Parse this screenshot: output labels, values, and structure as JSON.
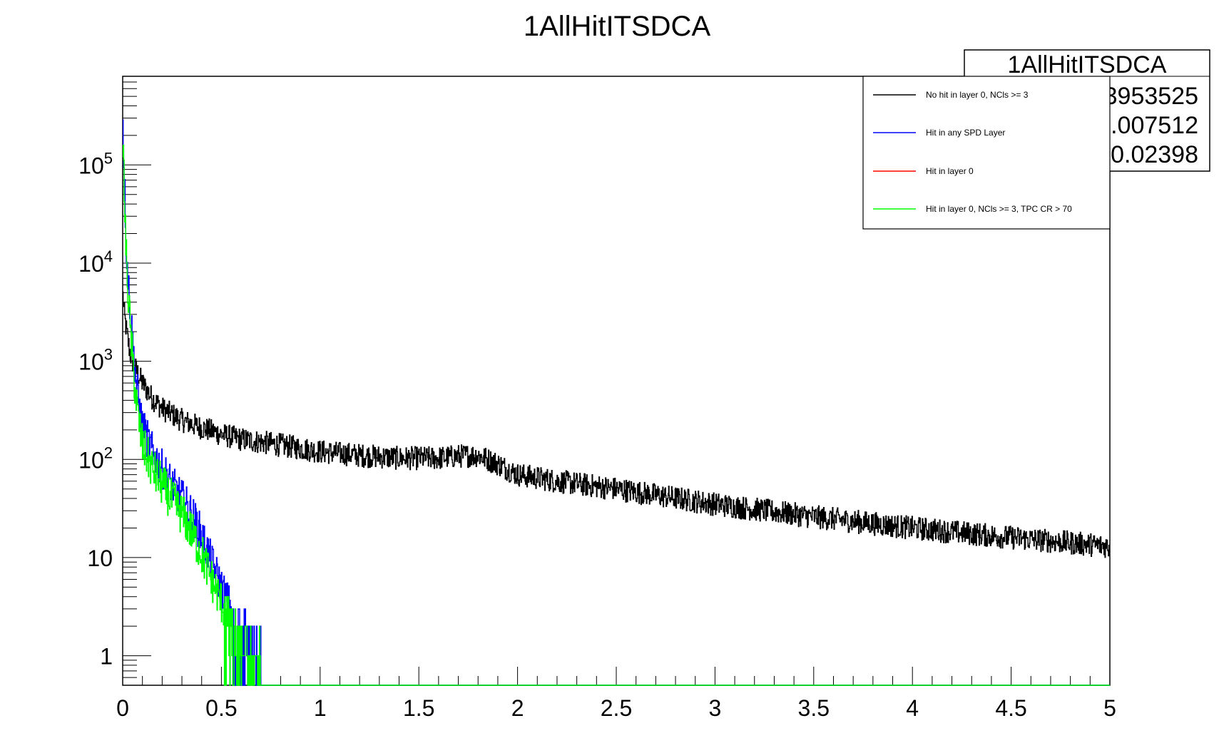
{
  "chart_data": {
    "type": "line",
    "title": "1AllHitITSDCA",
    "xlabel": "",
    "ylabel": "",
    "xlim": [
      0,
      5
    ],
    "ylim": [
      0.5,
      800000
    ],
    "y_scale": "log",
    "grid": false,
    "legend_placement": "top-right",
    "x_tick_labels": [
      "0",
      "0.5",
      "1",
      "1.5",
      "2",
      "2.5",
      "3",
      "3.5",
      "4",
      "4.5",
      "5"
    ],
    "y_tick_labels": [
      {
        "value": 1,
        "base": "1",
        "exp": ""
      },
      {
        "value": 10,
        "base": "10",
        "exp": ""
      },
      {
        "value": 100,
        "base": "10",
        "exp": "2"
      },
      {
        "value": 1000,
        "base": "10",
        "exp": "3"
      },
      {
        "value": 10000,
        "base": "10",
        "exp": "4"
      },
      {
        "value": 100000,
        "base": "10",
        "exp": "5"
      }
    ],
    "stats_box": {
      "title": "1AllHitITSDCA",
      "lines": [
        "3953525",
        ".007512",
        "0.02398"
      ]
    },
    "series": [
      {
        "name": "No hit in layer 0, NCls >= 3",
        "color": "#000000",
        "points": [
          [
            0.0,
            5000
          ],
          [
            0.01,
            2800
          ],
          [
            0.02,
            2000
          ],
          [
            0.03,
            1500
          ],
          [
            0.04,
            1150
          ],
          [
            0.05,
            1000
          ],
          [
            0.07,
            800
          ],
          [
            0.1,
            600
          ],
          [
            0.15,
            420
          ],
          [
            0.2,
            330
          ],
          [
            0.3,
            250
          ],
          [
            0.4,
            210
          ],
          [
            0.5,
            180
          ],
          [
            0.6,
            160
          ],
          [
            0.7,
            150
          ],
          [
            0.8,
            140
          ],
          [
            0.9,
            130
          ],
          [
            1.0,
            120
          ],
          [
            1.2,
            110
          ],
          [
            1.4,
            103
          ],
          [
            1.6,
            103
          ],
          [
            1.7,
            108
          ],
          [
            1.8,
            110
          ],
          [
            1.9,
            90
          ],
          [
            2.0,
            70
          ],
          [
            2.2,
            60
          ],
          [
            2.5,
            50
          ],
          [
            3.0,
            35
          ],
          [
            3.5,
            26
          ],
          [
            4.0,
            20
          ],
          [
            4.5,
            16
          ],
          [
            5.0,
            13
          ]
        ],
        "noise": 0.12
      },
      {
        "name": "Hit in any SPD Layer",
        "color": "#0000ff",
        "points": [
          [
            0.0,
            350000
          ],
          [
            0.01,
            60000
          ],
          [
            0.02,
            12000
          ],
          [
            0.04,
            3000
          ],
          [
            0.06,
            900
          ],
          [
            0.08,
            400
          ],
          [
            0.1,
            220
          ],
          [
            0.15,
            120
          ],
          [
            0.2,
            80
          ],
          [
            0.25,
            55
          ],
          [
            0.3,
            40
          ],
          [
            0.35,
            28
          ],
          [
            0.4,
            17
          ],
          [
            0.45,
            9
          ],
          [
            0.5,
            5
          ],
          [
            0.55,
            3
          ],
          [
            0.6,
            2
          ],
          [
            0.65,
            1.5
          ],
          [
            0.7,
            1
          ]
        ],
        "noise": 0.2
      },
      {
        "name": "Hit in layer 0",
        "color": "#ff0000",
        "points": [],
        "noise": 0
      },
      {
        "name": "Hit in layer 0, NCls >= 3, TPC CR > 70",
        "color": "#00ff00",
        "points": [
          [
            0.0,
            250000
          ],
          [
            0.01,
            40000
          ],
          [
            0.02,
            9000
          ],
          [
            0.04,
            2000
          ],
          [
            0.06,
            600
          ],
          [
            0.08,
            250
          ],
          [
            0.1,
            140
          ],
          [
            0.15,
            80
          ],
          [
            0.2,
            55
          ],
          [
            0.25,
            38
          ],
          [
            0.3,
            28
          ],
          [
            0.35,
            18
          ],
          [
            0.4,
            11
          ],
          [
            0.45,
            6
          ],
          [
            0.5,
            3.5
          ],
          [
            0.55,
            2
          ],
          [
            0.6,
            1.5
          ],
          [
            0.65,
            1.2
          ],
          [
            0.7,
            1
          ]
        ],
        "noise": 0.22
      }
    ]
  }
}
